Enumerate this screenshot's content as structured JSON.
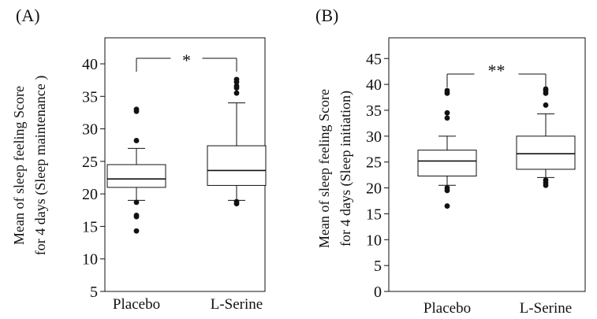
{
  "chart_data": [
    {
      "type": "box",
      "panel_label": "(A)",
      "ylabel": [
        "Mean of sleep feeling Score",
        "for 4 days (Sleep maintenance )"
      ],
      "categories": [
        "Placebo",
        "L-Serine"
      ],
      "yticks": [
        5,
        10,
        15,
        20,
        25,
        30,
        35,
        40
      ],
      "ylim": [
        5,
        44
      ],
      "boxes": [
        {
          "whisker_low": 19.0,
          "q1": 21.0,
          "median": 22.3,
          "q3": 24.5,
          "whisker_high": 27.0,
          "outliers": [
            14.3,
            16.5,
            16.7,
            18.7,
            28.2,
            32.7,
            33.0
          ]
        },
        {
          "whisker_low": 19.0,
          "q1": 21.3,
          "median": 23.6,
          "q3": 27.4,
          "whisker_high": 34.0,
          "outliers": [
            18.5,
            18.8,
            35.5,
            36.3,
            36.6,
            37.2,
            37.6
          ]
        }
      ],
      "significance": "*"
    },
    {
      "type": "box",
      "panel_label": "(B)",
      "ylabel": [
        "Mean of sleep feeling Score",
        "for 4 days (Sleep initiation)"
      ],
      "categories": [
        "Placebo",
        "L-Serine"
      ],
      "yticks": [
        0,
        5,
        10,
        15,
        20,
        25,
        30,
        35,
        40,
        45
      ],
      "ylim": [
        0,
        49
      ],
      "boxes": [
        {
          "whisker_low": 20.5,
          "q1": 22.3,
          "median": 25.2,
          "q3": 27.3,
          "whisker_high": 30.0,
          "outliers": [
            16.5,
            19.5,
            20.0,
            33.5,
            34.5,
            38.3,
            38.8
          ]
        },
        {
          "whisker_low": 22.0,
          "q1": 23.6,
          "median": 26.6,
          "q3": 30.0,
          "whisker_high": 34.3,
          "outliers": [
            20.5,
            21.0,
            21.5,
            36.0,
            38.3,
            38.8,
            39.1
          ]
        }
      ],
      "significance": "**"
    }
  ]
}
